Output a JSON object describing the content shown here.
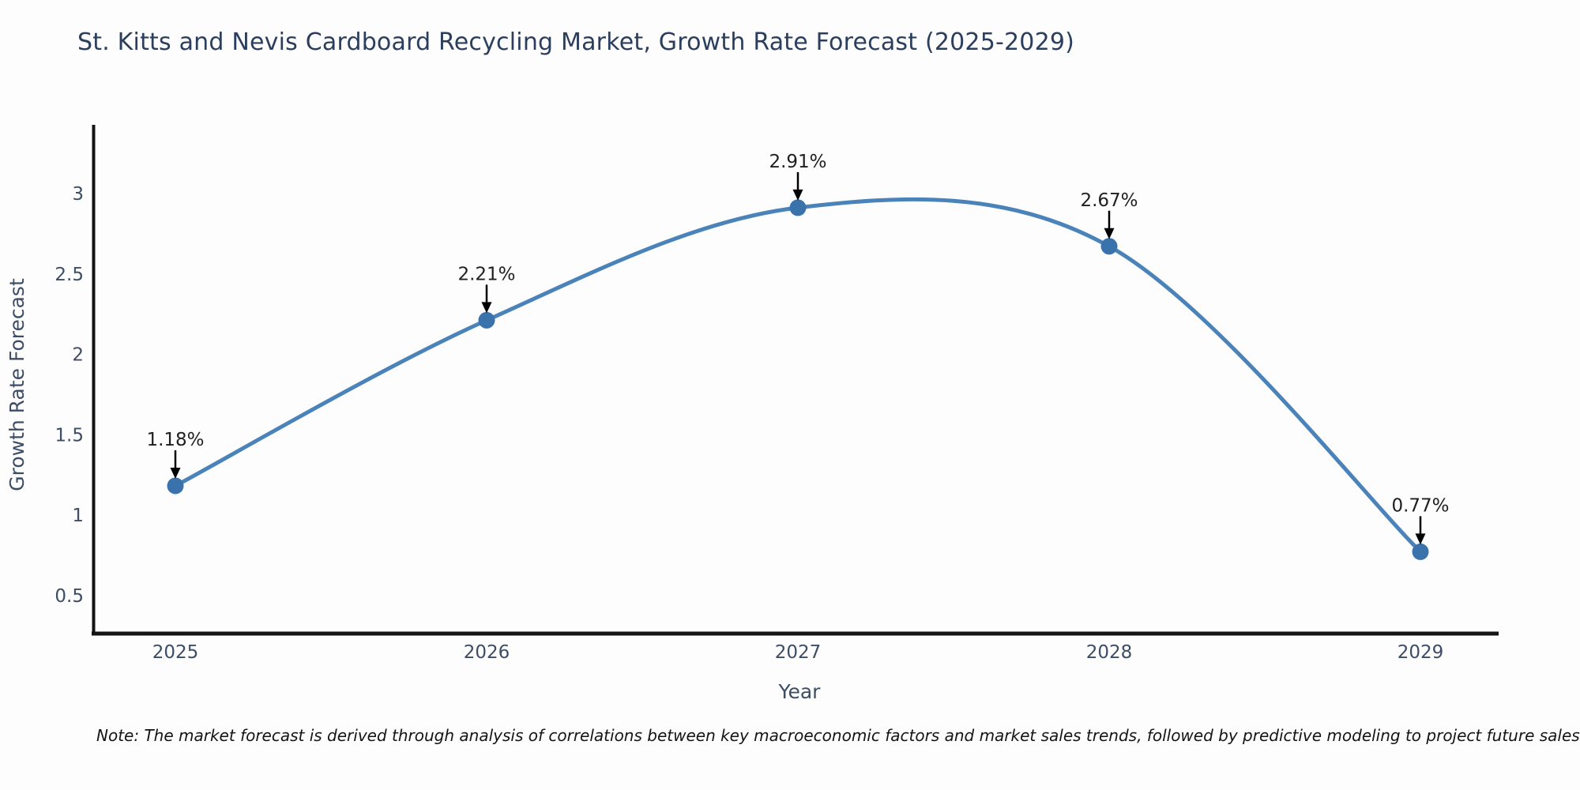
{
  "title": "St. Kitts and Nevis Cardboard Recycling Market, Growth Rate Forecast (2025-2029)",
  "note": "Note: The market forecast is derived through analysis of correlations between key macroeconomic factors and market sales trends, followed by predictive modeling to project future sales",
  "chart_data": {
    "type": "line",
    "title": "St. Kitts and Nevis Cardboard Recycling Market, Growth Rate Forecast (2025-2029)",
    "x": [
      2025,
      2026,
      2027,
      2028,
      2029
    ],
    "values": [
      1.18,
      2.21,
      2.91,
      2.67,
      0.77
    ],
    "point_labels": [
      "1.18%",
      "2.21%",
      "2.91%",
      "2.67%",
      "0.77%"
    ],
    "xlabel": "Year",
    "ylabel": "Growth Rate Forecast",
    "yticks": [
      0.5,
      1,
      1.5,
      2,
      2.5,
      3
    ],
    "xticks": [
      2025,
      2026,
      2027,
      2028,
      2029
    ],
    "ylim": [
      0.26,
      3.42
    ],
    "xlim": [
      2024.74,
      2029.25
    ],
    "grid": false,
    "legend": "none",
    "smooth": true,
    "annotations": "value labels with downward arrows above each point"
  },
  "colors": {
    "background": "#fdfdfd",
    "line": "#4a82ba",
    "marker": "#3a72ac",
    "axis": "#141414",
    "tick_text": "#3d4d66",
    "axis_title_text": "#3d4d66",
    "title_text": "#2c3e5d",
    "annotation_text": "#1f1f1f",
    "annotation_arrow": "#000000",
    "note_text": "#141414"
  }
}
